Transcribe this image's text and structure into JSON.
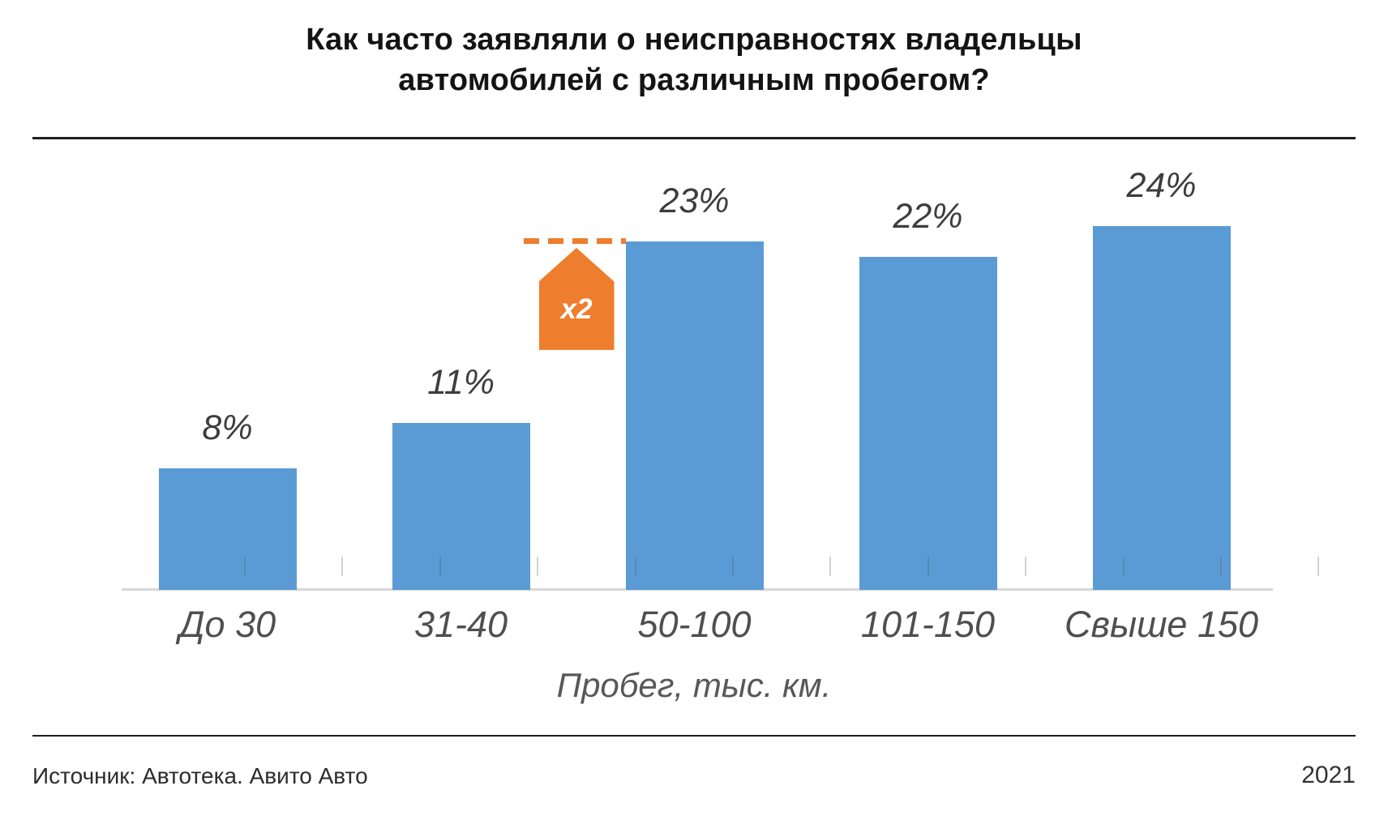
{
  "title": {
    "line1": "Как часто заявляли о неисправностях владельцы",
    "line2": "автомобилей с различным пробегом?"
  },
  "footer": {
    "source": "Источник: Автотека. Авито Авто",
    "year": "2021"
  },
  "chart_data": {
    "type": "bar",
    "title": "Как часто заявляли о неисправностях владельцы автомобилей с различным пробегом?",
    "categories": [
      "До 30",
      "31-40",
      "50-100",
      "101-150",
      "Свыше 150"
    ],
    "values": [
      8,
      11,
      23,
      22,
      24
    ],
    "value_labels": [
      "8%",
      "11%",
      "23%",
      "22%",
      "24%"
    ],
    "xlabel": "Пробег, тыс. км.",
    "ylabel": "",
    "ylim": [
      0,
      30
    ],
    "grid": false,
    "legend": false,
    "bar_color": "#5B9BD5",
    "axis_line_color": "#d8d8d8",
    "annotation": {
      "text": "x2",
      "color": "#EE7D2E",
      "target_category": "50-100",
      "style": "dashed-line-with-up-arrow"
    }
  }
}
